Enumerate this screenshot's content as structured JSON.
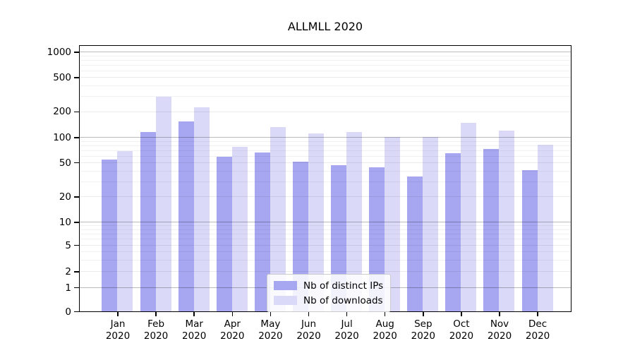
{
  "chart_data": {
    "type": "bar",
    "title": "ALLMLL 2020",
    "categories": [
      "Jan",
      "Feb",
      "Mar",
      "Apr",
      "May",
      "Jun",
      "Jul",
      "Aug",
      "Sep",
      "Oct",
      "Nov",
      "Dec"
    ],
    "category_year": "2020",
    "series": [
      {
        "name": "Nb of distinct IPs",
        "color": "#a6a6f1",
        "values": [
          54,
          116,
          154,
          59,
          66,
          51,
          46,
          44,
          34,
          64,
          72,
          41
        ]
      },
      {
        "name": "Nb of downloads",
        "color": "#dadaf8",
        "values": [
          69,
          295,
          221,
          77,
          131,
          110,
          114,
          100,
          100,
          146,
          119,
          82
        ]
      }
    ],
    "xlabel": "",
    "ylabel": "",
    "yscale": "symlog",
    "yticks": [
      1000,
      500,
      200,
      100,
      50,
      20,
      10,
      5,
      2,
      1,
      0
    ],
    "ylim": [
      0,
      1200
    ],
    "grid": "on",
    "legend_position": "lower-center-inside",
    "background_color": "#ffffff",
    "grid_major_color": "#bfbfbf",
    "grid_minor_color": "#ebebeb"
  }
}
